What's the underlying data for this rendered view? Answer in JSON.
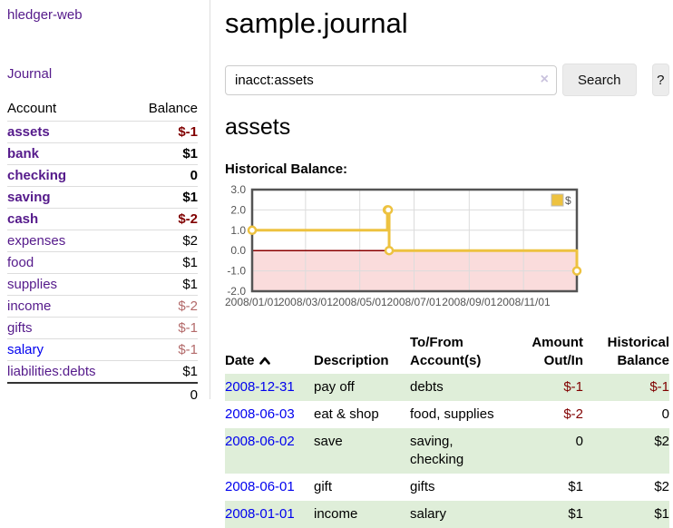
{
  "app": {
    "brand": "hledger-web",
    "nav_journal": "Journal"
  },
  "sidebar": {
    "columns": {
      "account": "Account",
      "balance": "Balance"
    },
    "rows": [
      {
        "name": "assets",
        "balance": "$-1",
        "indent": 1,
        "bold": true,
        "balance_class": "neg"
      },
      {
        "name": "bank",
        "balance": "$1",
        "indent": 2,
        "bold": true,
        "balance_class": ""
      },
      {
        "name": "checking",
        "balance": "0",
        "indent": 3,
        "bold": true,
        "balance_class": ""
      },
      {
        "name": "saving",
        "balance": "$1",
        "indent": 3,
        "bold": true,
        "balance_class": ""
      },
      {
        "name": "cash",
        "balance": "$-2",
        "indent": 2,
        "bold": true,
        "balance_class": "neg"
      },
      {
        "name": "expenses",
        "balance": "$2",
        "indent": 1,
        "bold": false,
        "balance_class": ""
      },
      {
        "name": "food",
        "balance": "$1",
        "indent": 2,
        "bold": false,
        "balance_class": ""
      },
      {
        "name": "supplies",
        "balance": "$1",
        "indent": 2,
        "bold": false,
        "balance_class": ""
      },
      {
        "name": "income",
        "balance": "$-2",
        "indent": 1,
        "bold": false,
        "balance_class": "neg-soft"
      },
      {
        "name": "gifts",
        "balance": "$-1",
        "indent": 2,
        "bold": false,
        "balance_class": "neg-soft"
      },
      {
        "name": "salary",
        "balance": "$-1",
        "indent": 2,
        "bold": false,
        "balance_class": "neg-soft",
        "link_class": "blue"
      },
      {
        "name": "liabilities:debts",
        "balance": "$1",
        "indent": 1,
        "bold": false,
        "balance_class": ""
      }
    ],
    "total": "0"
  },
  "header": {
    "title": "sample.journal"
  },
  "search": {
    "value": "inacct:assets",
    "clear_icon": "×",
    "search_button": "Search",
    "help_button": "?"
  },
  "account_page": {
    "heading": "assets",
    "chart_label": "Historical Balance:"
  },
  "chart_data": {
    "type": "line",
    "step": true,
    "title": "Historical Balance",
    "series": [
      {
        "name": "$",
        "color": "#edc240",
        "points": [
          [
            "2008-01-01",
            1
          ],
          [
            "2008-06-01",
            2
          ],
          [
            "2008-06-02",
            2
          ],
          [
            "2008-06-03",
            0
          ],
          [
            "2008-12-31",
            -1
          ]
        ]
      }
    ],
    "x_range": [
      "2008-01-01",
      "2008-12-31"
    ],
    "x_ticks": [
      "2008/01/01",
      "2008/03/01",
      "2008/05/01",
      "2008/07/01",
      "2008/09/01",
      "2008/11/01"
    ],
    "y_ticks": [
      "3.0",
      "2.0",
      "1.0",
      "0.0",
      "-1.0",
      "-2.0"
    ],
    "ylim": [
      -2,
      3
    ],
    "grid": true,
    "legend": {
      "label": "$",
      "position": "top-right"
    },
    "negative_region_color": "#fadcdc",
    "zero_line_color": "#8b0000",
    "border_color": "#545454",
    "grid_color": "#dcdcdc"
  },
  "register": {
    "columns": {
      "date": "Date",
      "description": "Description",
      "accounts": "To/From Account(s)",
      "amount": "Amount Out/In",
      "balance": "Historical Balance"
    },
    "rows": [
      {
        "date": "2008-12-31",
        "description": "pay off",
        "accounts": "debts",
        "amount": "$-1",
        "amount_neg": true,
        "balance": "$-1",
        "balance_neg": true
      },
      {
        "date": "2008-06-03",
        "description": "eat & shop",
        "accounts": "food, supplies",
        "amount": "$-2",
        "amount_neg": true,
        "balance": "0",
        "balance_neg": false
      },
      {
        "date": "2008-06-02",
        "description": "save",
        "accounts": "saving, checking",
        "amount": "0",
        "amount_neg": false,
        "balance": "$2",
        "balance_neg": false
      },
      {
        "date": "2008-06-01",
        "description": "gift",
        "accounts": "gifts",
        "amount": "$1",
        "amount_neg": false,
        "balance": "$2",
        "balance_neg": false
      },
      {
        "date": "2008-01-01",
        "description": "income",
        "accounts": "salary",
        "amount": "$1",
        "amount_neg": false,
        "balance": "$1",
        "balance_neg": false
      }
    ]
  }
}
